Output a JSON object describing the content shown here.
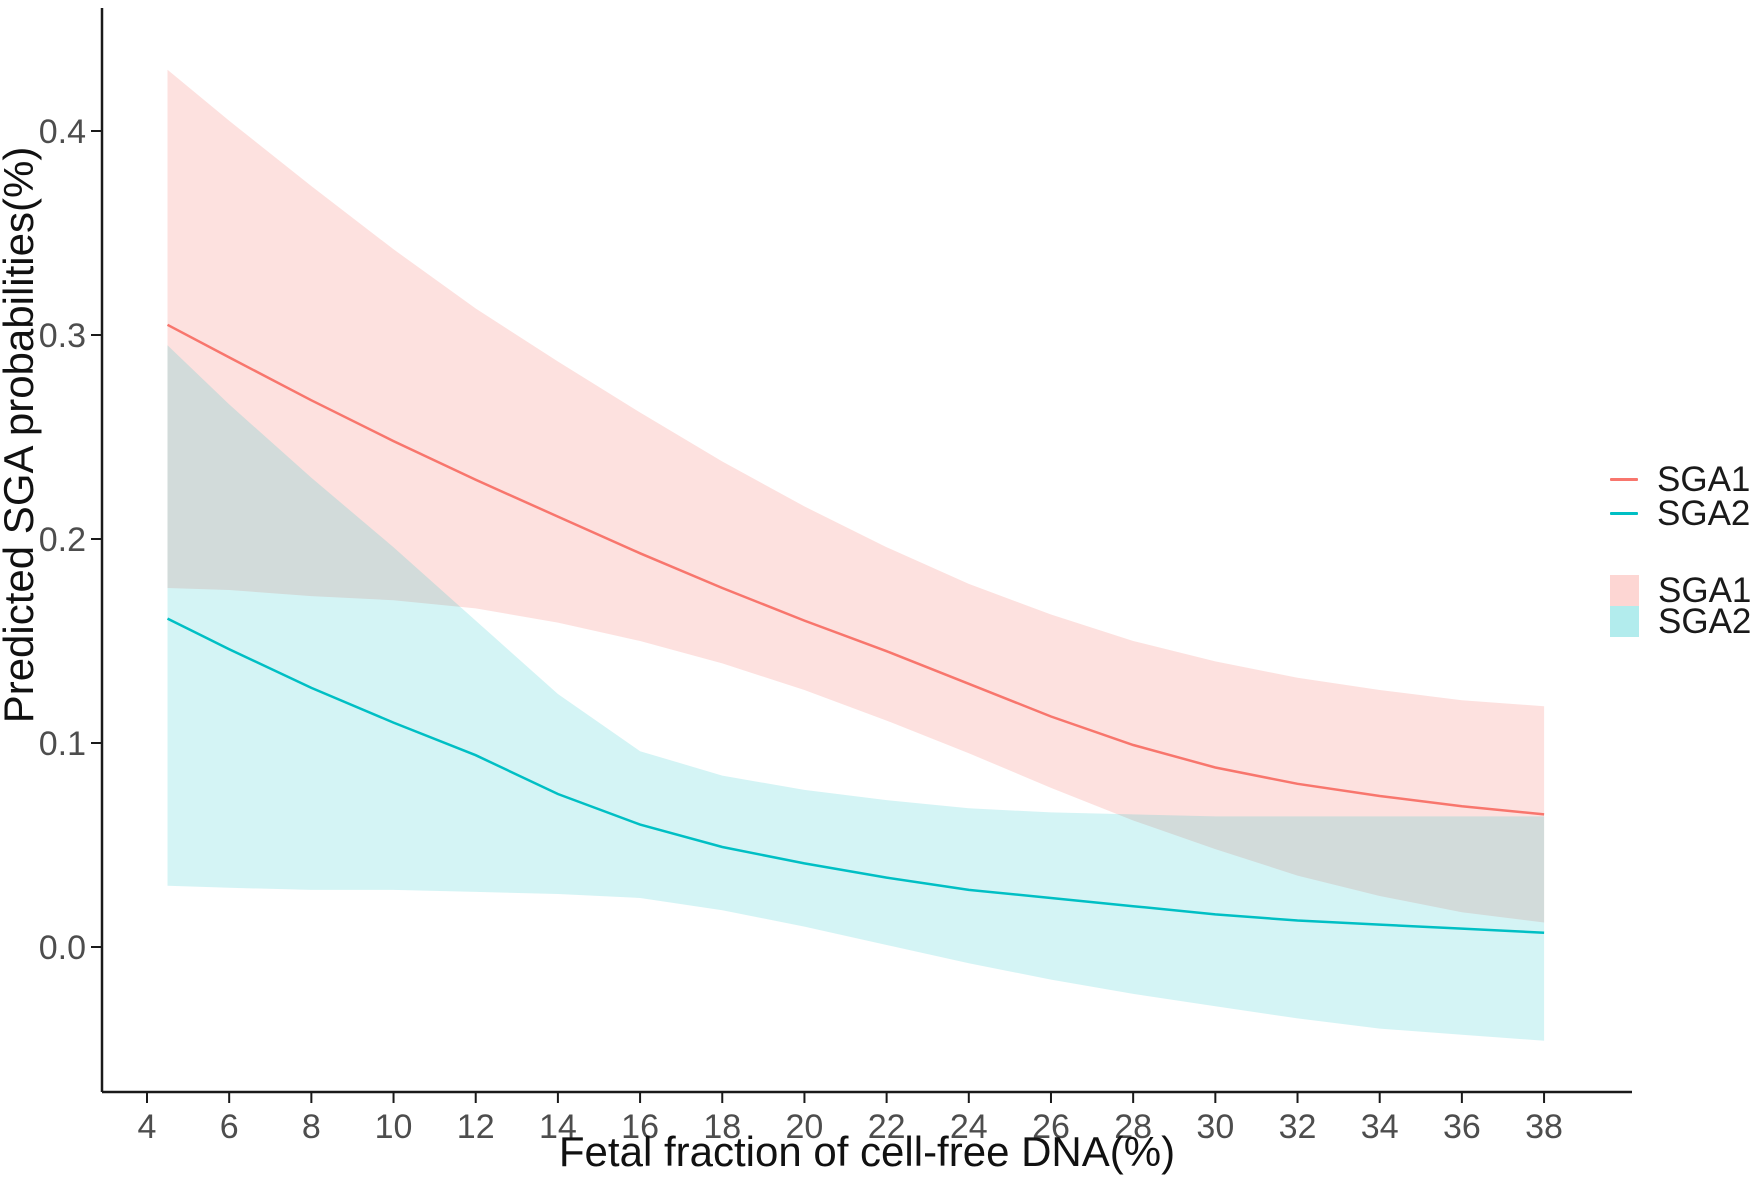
{
  "chart_data": {
    "type": "line",
    "title": "",
    "xlabel": "Fetal fraction of cell-free DNA(%)",
    "ylabel": "Predicted SGA probabilities(%)",
    "x_ticks": [
      4,
      6,
      8,
      10,
      12,
      14,
      16,
      18,
      20,
      22,
      24,
      26,
      28,
      30,
      32,
      34,
      36,
      38
    ],
    "y_ticks": [
      "0.0",
      "0.1",
      "0.2",
      "0.3",
      "0.4"
    ],
    "y_tick_values": [
      0.0,
      0.1,
      0.2,
      0.3,
      0.4
    ],
    "xlim": [
      2.9,
      40.2
    ],
    "ylim": [
      -0.071,
      0.46
    ],
    "grid": false,
    "legend_position": "right",
    "x": [
      4.5,
      6,
      8,
      10,
      12,
      14,
      16,
      18,
      20,
      22,
      24,
      26,
      28,
      30,
      32,
      34,
      36,
      38
    ],
    "series": [
      {
        "name": "SGA1",
        "color": "#F8766D",
        "ribbon_opacity": 0.22,
        "values": [
          0.305,
          0.289,
          0.268,
          0.248,
          0.229,
          0.211,
          0.193,
          0.176,
          0.16,
          0.145,
          0.129,
          0.113,
          0.099,
          0.088,
          0.08,
          0.074,
          0.069,
          0.065
        ],
        "upper": [
          0.43,
          0.405,
          0.373,
          0.342,
          0.313,
          0.287,
          0.262,
          0.238,
          0.216,
          0.196,
          0.178,
          0.163,
          0.15,
          0.14,
          0.132,
          0.126,
          0.121,
          0.118
        ],
        "lower": [
          0.176,
          0.175,
          0.172,
          0.17,
          0.166,
          0.159,
          0.15,
          0.139,
          0.126,
          0.111,
          0.095,
          0.078,
          0.062,
          0.048,
          0.035,
          0.025,
          0.017,
          0.012
        ]
      },
      {
        "name": "SGA2",
        "color": "#00BFC4",
        "ribbon_opacity": 0.17,
        "values": [
          0.161,
          0.146,
          0.127,
          0.11,
          0.094,
          0.075,
          0.06,
          0.049,
          0.041,
          0.034,
          0.028,
          0.024,
          0.02,
          0.016,
          0.013,
          0.011,
          0.009,
          0.007
        ],
        "upper": [
          0.295,
          0.266,
          0.23,
          0.196,
          0.16,
          0.124,
          0.096,
          0.084,
          0.077,
          0.072,
          0.068,
          0.066,
          0.065,
          0.064,
          0.064,
          0.064,
          0.064,
          0.064
        ],
        "lower": [
          0.03,
          0.029,
          0.028,
          0.028,
          0.027,
          0.026,
          0.024,
          0.018,
          0.01,
          0.001,
          -0.008,
          -0.016,
          -0.023,
          -0.029,
          -0.035,
          -0.04,
          -0.043,
          -0.046
        ]
      }
    ],
    "legend": {
      "line_entries": [
        {
          "label": "SGA1"
        },
        {
          "label": "SGA2"
        }
      ],
      "fill_entries": [
        {
          "label": "SGA1"
        },
        {
          "label": "SGA2"
        }
      ]
    },
    "axis_color": "#1a1a1a",
    "tick_label_color": "#4d4d4d"
  }
}
